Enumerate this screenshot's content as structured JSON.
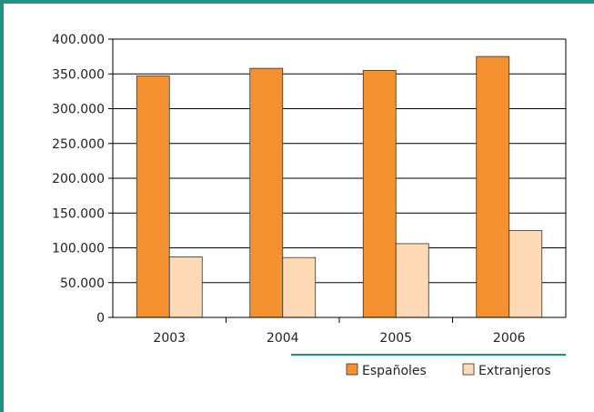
{
  "chart_data": {
    "type": "bar",
    "categories": [
      "2003",
      "2004",
      "2005",
      "2006"
    ],
    "series": [
      {
        "name": "Españoles",
        "values": [
          347000,
          358000,
          355000,
          375000
        ]
      },
      {
        "name": "Extranjeros",
        "values": [
          87000,
          86000,
          106000,
          125000
        ]
      }
    ],
    "ylim": [
      0,
      400000
    ],
    "yticks": [
      "0",
      "50.000",
      "100.000",
      "150.000",
      "200.000",
      "250.000",
      "300.000",
      "350.000",
      "400.000"
    ],
    "grid": true,
    "legend_position": "bottom-right"
  },
  "colors": {
    "frame": "#1a9580",
    "españoles": "#f5922f",
    "extranjeros": "#fdd9b5",
    "bar_stroke": "#333333",
    "grid": "#000000"
  }
}
